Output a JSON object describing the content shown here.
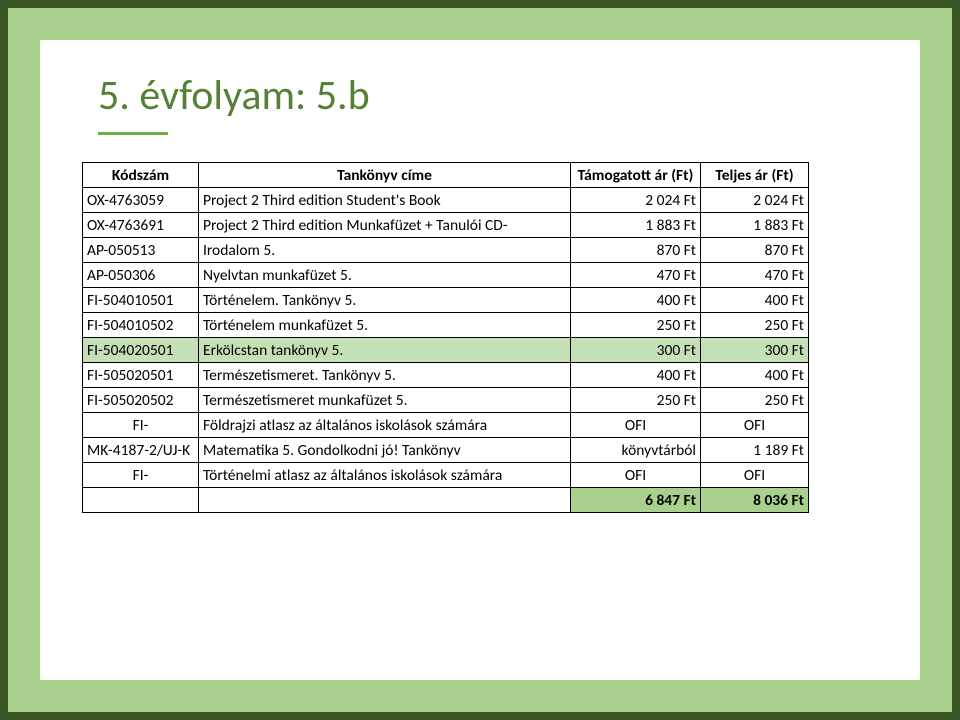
{
  "colors": {
    "outer_border": "#385723",
    "band": "#a9d18e",
    "title": "#548235",
    "underline": "#70ad47",
    "highlight_row_bg": "#c5e0b4",
    "total_row_bg": "#a9d18e",
    "cell_bg": "#ffffff"
  },
  "title": "5. évfolyam: 5.b",
  "table": {
    "headers": [
      "Kódszám",
      "Tankönyv címe",
      "Támogatott ár (Ft)",
      "Teljes ár (Ft)"
    ],
    "rows": [
      {
        "code": "OX-4763059",
        "name": "Project 2 Third edition Student's Book",
        "p1": "2 024 Ft",
        "p2": "2 024 Ft"
      },
      {
        "code": "OX-4763691",
        "name": "Project 2 Third edition Munkafüzet + Tanulói CD-",
        "p1": "1 883 Ft",
        "p2": "1 883 Ft"
      },
      {
        "code": "AP-050513",
        "name": "Irodalom 5.",
        "p1": "870 Ft",
        "p2": "870 Ft"
      },
      {
        "code": "AP-050306",
        "name": "Nyelvtan munkafüzet 5.",
        "p1": "470 Ft",
        "p2": "470 Ft"
      },
      {
        "code": "FI-504010501",
        "name": "Történelem. Tankönyv 5.",
        "p1": "400 Ft",
        "p2": "400 Ft"
      },
      {
        "code": "FI-504010502",
        "name": "Történelem munkafüzet 5.",
        "p1": "250 Ft",
        "p2": "250 Ft"
      },
      {
        "code": "FI-504020501",
        "name": "Erkölcstan tankönyv 5.",
        "p1": "300 Ft",
        "p2": "300 Ft",
        "highlight": true
      },
      {
        "code": "FI-505020501",
        "name": "Természetismeret. Tankönyv 5.",
        "p1": "400 Ft",
        "p2": "400 Ft"
      },
      {
        "code": "FI-505020502",
        "name": "Természetismeret munkafüzet 5.",
        "p1": "250 Ft",
        "p2": "250 Ft"
      },
      {
        "code": "FI-",
        "code_center": true,
        "name": "Földrajzi atlasz az általános iskolások számára",
        "p1": "OFI",
        "p2": "OFI",
        "ofi": true
      },
      {
        "code": "MK-4187-2/UJ-K",
        "name": "Matematika 5. Gondolkodni jó! Tankönyv",
        "p1": "könyvtárból",
        "p2": "1 189 Ft"
      },
      {
        "code": "FI-",
        "code_center": true,
        "name": "Történelmi atlasz az általános iskolások számára",
        "p1": "OFI",
        "p2": "OFI",
        "ofi": true
      }
    ],
    "total": {
      "p1": "6 847 Ft",
      "p2": "8 036 Ft"
    }
  }
}
